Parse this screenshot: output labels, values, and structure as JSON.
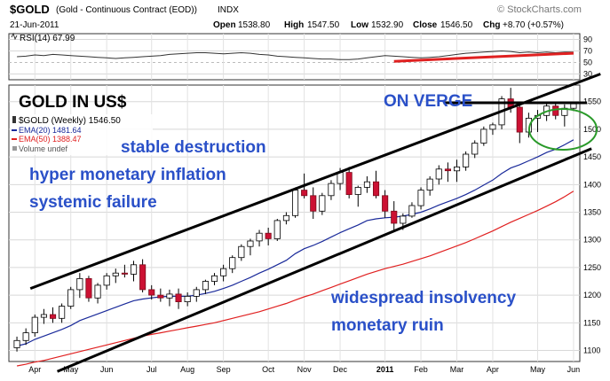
{
  "header": {
    "symbol": "$GOLD",
    "description": "(Gold - Continuous Contract (EOD))",
    "exchange": "INDX",
    "date": "21-Jun-2011",
    "open_label": "Open",
    "open": "1538.80",
    "high_label": "High",
    "high": "1547.50",
    "low_label": "Low",
    "low": "1532.90",
    "close_label": "Close",
    "close": "1546.50",
    "chg_label": "Chg",
    "chg": "+8.70 (+0.57%)",
    "watermark": "© StockCharts.com"
  },
  "colors": {
    "up_candle": "#ffffff",
    "down_candle": "#cc1133",
    "ema20": "#1a2a9a",
    "ema50": "#e02020",
    "annotation_text": "#2a50c8",
    "rsi_trend": "#e02020",
    "circle": "#2a9a2a"
  },
  "chart_data": [
    {
      "type": "line",
      "name": "RSI(14)",
      "legend": "RSI(14) 67.99",
      "yticks": [
        30,
        50,
        70,
        90
      ],
      "ylim": [
        20,
        100
      ],
      "values": [
        60,
        61,
        63,
        62,
        64,
        63,
        62,
        61,
        60,
        59,
        58,
        57,
        58,
        59,
        60,
        61,
        62,
        64,
        65,
        66,
        67,
        67,
        66,
        65,
        66,
        67,
        66,
        64,
        63,
        61,
        60,
        59,
        58,
        57,
        56,
        56,
        55,
        55,
        56,
        58,
        60,
        62,
        61,
        60,
        59,
        58,
        59,
        60,
        62,
        64,
        66,
        67,
        68,
        69,
        70,
        69,
        67,
        68,
        67,
        68,
        67,
        68,
        68
      ],
      "trendline": {
        "from_week": 42,
        "from_value": 52,
        "to_week": 62,
        "to_value": 66
      }
    },
    {
      "type": "candlestick",
      "title": "GOLD IN US$",
      "legend": [
        "$GOLD (Weekly) 1546.50",
        "EMA(20) 1481.64",
        "EMA(50) 1388.47",
        "Volume undef"
      ],
      "ylim": [
        1080,
        1580
      ],
      "yticks": [
        1100,
        1150,
        1200,
        1250,
        1300,
        1350,
        1400,
        1450,
        1500,
        1550
      ],
      "months": [
        {
          "label": "Apr",
          "week": 2
        },
        {
          "label": "May",
          "week": 6
        },
        {
          "label": "Jun",
          "week": 10
        },
        {
          "label": "Jul",
          "week": 15
        },
        {
          "label": "Aug",
          "week": 19
        },
        {
          "label": "Sep",
          "week": 23
        },
        {
          "label": "Oct",
          "week": 28
        },
        {
          "label": "Nov",
          "week": 32
        },
        {
          "label": "Dec",
          "week": 36
        },
        {
          "label": "2011",
          "week": 41
        },
        {
          "label": "Feb",
          "week": 45
        },
        {
          "label": "Mar",
          "week": 49
        },
        {
          "label": "Apr",
          "week": 53
        },
        {
          "label": "May",
          "week": 58
        },
        {
          "label": "Jun",
          "week": 62
        }
      ],
      "candles": [
        [
          1105,
          1125,
          1098,
          1118
        ],
        [
          1118,
          1140,
          1110,
          1132
        ],
        [
          1132,
          1165,
          1125,
          1160
        ],
        [
          1160,
          1175,
          1148,
          1165
        ],
        [
          1165,
          1178,
          1150,
          1158
        ],
        [
          1158,
          1185,
          1150,
          1180
        ],
        [
          1180,
          1215,
          1175,
          1210
        ],
        [
          1210,
          1240,
          1195,
          1230
        ],
        [
          1230,
          1235,
          1188,
          1195
        ],
        [
          1195,
          1222,
          1185,
          1218
        ],
        [
          1218,
          1240,
          1210,
          1235
        ],
        [
          1235,
          1248,
          1222,
          1240
        ],
        [
          1240,
          1255,
          1232,
          1238
        ],
        [
          1238,
          1262,
          1225,
          1255
        ],
        [
          1255,
          1265,
          1205,
          1210
        ],
        [
          1210,
          1218,
          1192,
          1200
        ],
        [
          1200,
          1212,
          1188,
          1195
        ],
        [
          1195,
          1210,
          1180,
          1202
        ],
        [
          1202,
          1212,
          1175,
          1188
        ],
        [
          1188,
          1205,
          1180,
          1198
        ],
        [
          1198,
          1215,
          1188,
          1210
        ],
        [
          1210,
          1228,
          1202,
          1225
        ],
        [
          1225,
          1240,
          1218,
          1235
        ],
        [
          1235,
          1255,
          1225,
          1248
        ],
        [
          1248,
          1272,
          1240,
          1268
        ],
        [
          1268,
          1292,
          1262,
          1288
        ],
        [
          1288,
          1302,
          1272,
          1298
        ],
        [
          1298,
          1318,
          1288,
          1312
        ],
        [
          1312,
          1322,
          1290,
          1302
        ],
        [
          1302,
          1338,
          1298,
          1335
        ],
        [
          1335,
          1350,
          1328,
          1344
        ],
        [
          1344,
          1395,
          1340,
          1390
        ],
        [
          1390,
          1420,
          1375,
          1380
        ],
        [
          1380,
          1395,
          1338,
          1352
        ],
        [
          1352,
          1385,
          1345,
          1380
        ],
        [
          1380,
          1408,
          1372,
          1402
        ],
        [
          1402,
          1430,
          1390,
          1422
        ],
        [
          1422,
          1432,
          1375,
          1382
        ],
        [
          1382,
          1398,
          1360,
          1395
        ],
        [
          1395,
          1415,
          1385,
          1405
        ],
        [
          1405,
          1425,
          1375,
          1380
        ],
        [
          1380,
          1390,
          1340,
          1352
        ],
        [
          1352,
          1370,
          1318,
          1330
        ],
        [
          1330,
          1348,
          1318,
          1343
        ],
        [
          1343,
          1368,
          1340,
          1362
        ],
        [
          1362,
          1395,
          1355,
          1390
        ],
        [
          1390,
          1415,
          1380,
          1410
        ],
        [
          1410,
          1435,
          1400,
          1428
        ],
        [
          1428,
          1440,
          1405,
          1425
        ],
        [
          1425,
          1445,
          1405,
          1432
        ],
        [
          1432,
          1460,
          1425,
          1455
        ],
        [
          1455,
          1480,
          1448,
          1475
        ],
        [
          1475,
          1505,
          1470,
          1500
        ],
        [
          1500,
          1512,
          1490,
          1508
        ],
        [
          1508,
          1560,
          1500,
          1555
        ],
        [
          1555,
          1575,
          1530,
          1540
        ],
        [
          1540,
          1545,
          1475,
          1495
        ],
        [
          1495,
          1530,
          1485,
          1520
        ],
        [
          1520,
          1535,
          1495,
          1525
        ],
        [
          1525,
          1548,
          1515,
          1542
        ],
        [
          1542,
          1550,
          1518,
          1525
        ],
        [
          1525,
          1545,
          1505,
          1538
        ],
        [
          1538,
          1548,
          1533,
          1546
        ]
      ],
      "ema20": [
        1108,
        1112,
        1120,
        1126,
        1132,
        1138,
        1145,
        1154,
        1160,
        1166,
        1172,
        1178,
        1184,
        1190,
        1193,
        1195,
        1197,
        1198,
        1198,
        1198,
        1200,
        1203,
        1207,
        1212,
        1218,
        1225,
        1232,
        1240,
        1247,
        1255,
        1263,
        1275,
        1284,
        1290,
        1297,
        1305,
        1313,
        1320,
        1327,
        1335,
        1338,
        1340,
        1341,
        1343,
        1346,
        1350,
        1356,
        1363,
        1369,
        1375,
        1382,
        1390,
        1399,
        1408,
        1420,
        1430,
        1436,
        1443,
        1450,
        1458,
        1464,
        1472,
        1481
      ],
      "ema50": [
        1072,
        1075,
        1079,
        1082,
        1086,
        1090,
        1094,
        1098,
        1102,
        1106,
        1110,
        1114,
        1118,
        1122,
        1126,
        1129,
        1132,
        1135,
        1138,
        1141,
        1144,
        1147,
        1150,
        1154,
        1158,
        1162,
        1166,
        1170,
        1175,
        1180,
        1185,
        1191,
        1197,
        1202,
        1208,
        1214,
        1220,
        1226,
        1232,
        1238,
        1243,
        1248,
        1252,
        1256,
        1261,
        1266,
        1271,
        1277,
        1283,
        1289,
        1295,
        1302,
        1309,
        1316,
        1324,
        1332,
        1339,
        1346,
        1353,
        1361,
        1369,
        1378,
        1388
      ],
      "channel_lines": [
        {
          "from_week": 1.5,
          "from_value": 1212,
          "to_week": 65,
          "to_value": 1600
        },
        {
          "from_week": 4.5,
          "from_value": 1062,
          "to_week": 64,
          "to_value": 1465
        },
        {
          "from_week": 47.5,
          "from_value": 1548,
          "to_week": 63.5,
          "to_value": 1548
        }
      ],
      "annotations": {
        "title": "GOLD IN US$",
        "verge": "ON VERGE",
        "stable": "stable destruction",
        "hyper": "hyper monetary inflation",
        "systemic": "systemic failure",
        "insolvency": "widespread insolvency",
        "ruin": "monetary ruin"
      }
    }
  ]
}
